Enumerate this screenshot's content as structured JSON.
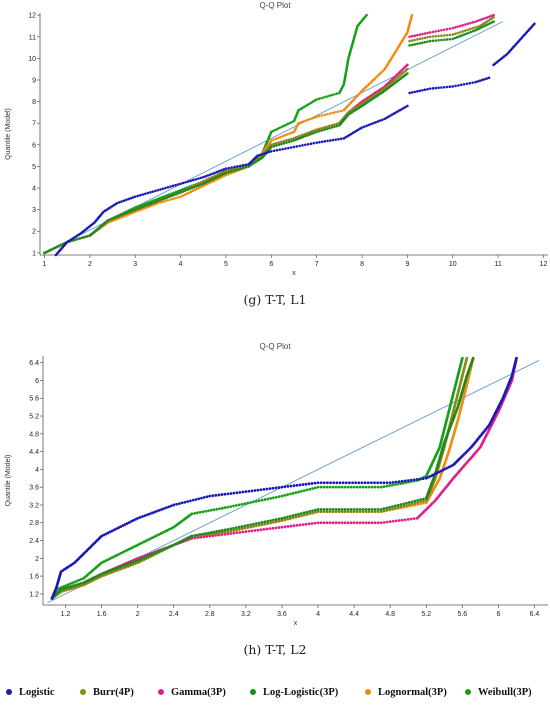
{
  "colors": {
    "logistic": "#1a1ab8",
    "burr": "#8a8a1a",
    "gamma": "#e0208a",
    "loglogistic": "#1e8a1e",
    "lognormal": "#f28c10",
    "weibull": "#16a016",
    "reference_line": "#5b9bd5",
    "axis": "#555555"
  },
  "captions": {
    "g": "(g) T-T, L1",
    "h": "(h) T-T, L2"
  },
  "legend": [
    {
      "label": "Logistic",
      "color": "#1a1ab8"
    },
    {
      "label": "Burr(4P)",
      "color": "#8a8a1a"
    },
    {
      "label": "Gamma(3P)",
      "color": "#e0208a"
    },
    {
      "label": "Log-Logistic(3P)",
      "color": "#1e8a1e"
    },
    {
      "label": "Lognormal(3P)",
      "color": "#f28c10"
    },
    {
      "label": "Weibull(3P)",
      "color": "#16a016"
    }
  ],
  "chart_data": [
    {
      "type": "scatter",
      "title": "Q-Q Plot",
      "xlabel": "x",
      "ylabel": "Quantile (Model)",
      "xlim": [
        0.9,
        12.1
      ],
      "ylim": [
        0.9,
        12.1
      ],
      "xticks": [
        1,
        2,
        3,
        4,
        5,
        6,
        7,
        8,
        9,
        10,
        11,
        12
      ],
      "yticks": [
        1,
        2,
        3,
        4,
        5,
        6,
        7,
        8,
        9,
        10,
        11,
        12
      ],
      "reference_line": [
        [
          1,
          1
        ],
        [
          11.1,
          11.7
        ]
      ],
      "series": [
        {
          "name": "Logistic",
          "points": [
            [
              1.25,
              0.9
            ],
            [
              1.5,
              1.5
            ],
            [
              1.8,
              1.9
            ],
            [
              2.1,
              2.4
            ],
            [
              2.3,
              2.9
            ],
            [
              2.6,
              3.3
            ],
            [
              3,
              3.6
            ],
            [
              3.5,
              3.9
            ],
            [
              4,
              4.2
            ],
            [
              4.5,
              4.5
            ],
            [
              5,
              4.9
            ],
            [
              5.5,
              5.1
            ],
            [
              5.7,
              5.5
            ],
            [
              6,
              5.7
            ],
            [
              6.5,
              5.9
            ],
            [
              7,
              6.1
            ],
            [
              7.6,
              6.3
            ],
            [
              8,
              6.8
            ],
            [
              8.5,
              7.2
            ],
            [
              9,
              7.8
            ]
          ],
          "points2": [
            [
              9.05,
              8.4
            ],
            [
              9.5,
              8.6
            ],
            [
              10,
              8.7
            ],
            [
              10.5,
              8.9
            ],
            [
              10.8,
              9.1
            ]
          ],
          "points3": [
            [
              10.9,
              9.7
            ],
            [
              11.2,
              10.2
            ],
            [
              11.5,
              10.9
            ],
            [
              11.8,
              11.6
            ]
          ]
        },
        {
          "name": "Burr(4P)",
          "points": [
            [
              1,
              1
            ],
            [
              1.5,
              1.5
            ],
            [
              2,
              1.8
            ],
            [
              2.4,
              2.5
            ],
            [
              3,
              3
            ],
            [
              3.5,
              3.4
            ],
            [
              4,
              3.8
            ],
            [
              4.5,
              4.3
            ],
            [
              5,
              4.8
            ],
            [
              5.5,
              5.1
            ],
            [
              5.8,
              5.5
            ],
            [
              6,
              6
            ],
            [
              6.5,
              6.3
            ],
            [
              7,
              6.7
            ],
            [
              7.5,
              7
            ],
            [
              7.7,
              7.5
            ],
            [
              8,
              7.9
            ],
            [
              8.5,
              8.6
            ],
            [
              9,
              9.5
            ]
          ],
          "points2": [
            [
              9.05,
              10.8
            ],
            [
              9.5,
              11
            ],
            [
              10,
              11.1
            ],
            [
              10.6,
              11.5
            ],
            [
              10.9,
              11.9
            ]
          ]
        },
        {
          "name": "Gamma(3P)",
          "points": [
            [
              1,
              1
            ],
            [
              1.5,
              1.5
            ],
            [
              2,
              1.8
            ],
            [
              2.4,
              2.5
            ],
            [
              3,
              3
            ],
            [
              3.5,
              3.4
            ],
            [
              4,
              3.8
            ],
            [
              4.5,
              4.3
            ],
            [
              5,
              4.8
            ],
            [
              5.5,
              5.1
            ],
            [
              5.8,
              5.5
            ],
            [
              6,
              6
            ],
            [
              6.5,
              6.3
            ],
            [
              7,
              6.7
            ],
            [
              7.5,
              7
            ],
            [
              7.7,
              7.5
            ],
            [
              8,
              8
            ],
            [
              8.5,
              8.7
            ],
            [
              9,
              9.7
            ]
          ],
          "points2": [
            [
              9.05,
              11
            ],
            [
              9.5,
              11.2
            ],
            [
              10,
              11.4
            ],
            [
              10.5,
              11.7
            ],
            [
              10.9,
              12
            ]
          ]
        },
        {
          "name": "Log-Logistic(3P)",
          "points": [
            [
              1,
              1
            ],
            [
              1.5,
              1.5
            ],
            [
              2,
              1.8
            ],
            [
              2.4,
              2.5
            ],
            [
              3,
              3
            ],
            [
              3.5,
              3.4
            ],
            [
              4,
              3.8
            ],
            [
              4.5,
              4.2
            ],
            [
              5,
              4.7
            ],
            [
              5.5,
              5
            ],
            [
              5.8,
              5.4
            ],
            [
              6,
              5.9
            ],
            [
              6.5,
              6.2
            ],
            [
              7,
              6.6
            ],
            [
              7.5,
              6.9
            ],
            [
              7.7,
              7.4
            ],
            [
              8,
              7.8
            ],
            [
              8.5,
              8.5
            ],
            [
              9,
              9.3
            ]
          ],
          "points2": [
            [
              9.05,
              10.6
            ],
            [
              9.5,
              10.8
            ],
            [
              10,
              10.9
            ],
            [
              10.5,
              11.3
            ],
            [
              10.9,
              11.7
            ]
          ]
        },
        {
          "name": "Lognormal(3P)",
          "points": [
            [
              1,
              1
            ],
            [
              1.5,
              1.5
            ],
            [
              2,
              1.8
            ],
            [
              2.4,
              2.4
            ],
            [
              3,
              2.9
            ],
            [
              3.5,
              3.3
            ],
            [
              4,
              3.6
            ],
            [
              4.5,
              4.1
            ],
            [
              5,
              4.6
            ],
            [
              5.5,
              5
            ],
            [
              5.8,
              5.6
            ],
            [
              6,
              6.2
            ],
            [
              6.5,
              6.6
            ],
            [
              6.6,
              7
            ],
            [
              7,
              7.3
            ],
            [
              7.6,
              7.6
            ],
            [
              8,
              8.5
            ],
            [
              8.5,
              9.5
            ],
            [
              9,
              11.2
            ],
            [
              9.1,
              12
            ]
          ]
        },
        {
          "name": "Weibull(3P)",
          "points": [
            [
              1,
              1
            ],
            [
              1.5,
              1.5
            ],
            [
              2,
              1.8
            ],
            [
              2.4,
              2.5
            ],
            [
              3,
              3.1
            ],
            [
              3.5,
              3.5
            ],
            [
              4,
              3.9
            ],
            [
              4.5,
              4.3
            ],
            [
              5,
              4.7
            ],
            [
              5.5,
              5
            ],
            [
              5.8,
              5.6
            ],
            [
              6,
              6.6
            ],
            [
              6.5,
              7.1
            ],
            [
              6.6,
              7.6
            ],
            [
              7,
              8.1
            ],
            [
              7.5,
              8.4
            ],
            [
              7.6,
              8.8
            ],
            [
              7.7,
              10
            ],
            [
              7.9,
              11.5
            ],
            [
              8.1,
              12
            ]
          ]
        }
      ]
    },
    {
      "type": "scatter",
      "title": "Q-Q Plot",
      "xlabel": "x",
      "ylabel": "Quantile (Model)",
      "xlim": [
        0.95,
        6.55
      ],
      "ylim": [
        0.95,
        6.55
      ],
      "xticks": [
        1.2,
        1.6,
        2,
        2.4,
        2.8,
        3.2,
        3.6,
        4,
        4.4,
        4.8,
        5.2,
        5.6,
        6,
        6.4
      ],
      "yticks": [
        1.2,
        1.6,
        2,
        2.4,
        2.8,
        3.2,
        3.6,
        4,
        4.4,
        4.8,
        5.2,
        5.6,
        6,
        6.4
      ],
      "reference_line": [
        [
          1,
          1
        ],
        [
          6.45,
          6.45
        ]
      ],
      "series": [
        {
          "name": "Logistic",
          "points": [
            [
              1.05,
              1.1
            ],
            [
              1.1,
              1.35
            ],
            [
              1.15,
              1.7
            ],
            [
              1.3,
              1.9
            ],
            [
              1.6,
              2.5
            ],
            [
              2,
              2.9
            ],
            [
              2.4,
              3.2
            ],
            [
              2.8,
              3.4
            ],
            [
              3.2,
              3.5
            ],
            [
              3.6,
              3.6
            ],
            [
              4,
              3.7
            ],
            [
              4.8,
              3.7
            ],
            [
              5.2,
              3.8
            ],
            [
              5.5,
              4.1
            ],
            [
              5.7,
              4.5
            ],
            [
              5.9,
              5
            ],
            [
              6.05,
              5.6
            ],
            [
              6.15,
              6.1
            ],
            [
              6.2,
              6.5
            ]
          ]
        },
        {
          "name": "Burr(4P)",
          "points": [
            [
              1.05,
              1.1
            ],
            [
              1.15,
              1.25
            ],
            [
              1.4,
              1.4
            ],
            [
              1.6,
              1.6
            ],
            [
              2,
              1.9
            ],
            [
              2.4,
              2.3
            ],
            [
              2.6,
              2.5
            ],
            [
              3,
              2.6
            ],
            [
              3.6,
              2.85
            ],
            [
              4,
              3.05
            ],
            [
              4.7,
              3.05
            ],
            [
              5.2,
              3.3
            ],
            [
              5.3,
              3.8
            ],
            [
              5.4,
              4.5
            ],
            [
              5.5,
              5.3
            ],
            [
              5.6,
              6.1
            ],
            [
              5.65,
              6.5
            ]
          ]
        },
        {
          "name": "Gamma(3P)",
          "points": [
            [
              1.05,
              1.1
            ],
            [
              1.15,
              1.3
            ],
            [
              1.4,
              1.45
            ],
            [
              1.6,
              1.65
            ],
            [
              2,
              2
            ],
            [
              2.4,
              2.3
            ],
            [
              2.6,
              2.45
            ],
            [
              3,
              2.55
            ],
            [
              3.6,
              2.7
            ],
            [
              4,
              2.8
            ],
            [
              4.7,
              2.8
            ],
            [
              5.1,
              2.9
            ],
            [
              5.3,
              3.3
            ],
            [
              5.5,
              3.8
            ],
            [
              5.8,
              4.5
            ],
            [
              6,
              5.3
            ],
            [
              6.15,
              6
            ],
            [
              6.2,
              6.5
            ]
          ]
        },
        {
          "name": "Log-Logistic(3P)",
          "points": [
            [
              1.05,
              1.1
            ],
            [
              1.15,
              1.3
            ],
            [
              1.4,
              1.45
            ],
            [
              1.6,
              1.65
            ],
            [
              2,
              1.95
            ],
            [
              2.4,
              2.3
            ],
            [
              2.6,
              2.5
            ],
            [
              3,
              2.65
            ],
            [
              3.6,
              2.9
            ],
            [
              4,
              3.1
            ],
            [
              4.7,
              3.1
            ],
            [
              5.2,
              3.35
            ],
            [
              5.3,
              3.9
            ],
            [
              5.4,
              4.6
            ],
            [
              5.55,
              5.4
            ],
            [
              5.65,
              6.1
            ],
            [
              5.72,
              6.5
            ]
          ]
        },
        {
          "name": "Lognormal(3P)",
          "points": [
            [
              1.05,
              1.1
            ],
            [
              1.15,
              1.25
            ],
            [
              1.4,
              1.4
            ],
            [
              1.6,
              1.6
            ],
            [
              2,
              1.9
            ],
            [
              2.4,
              2.3
            ],
            [
              2.6,
              2.45
            ],
            [
              3,
              2.6
            ],
            [
              3.6,
              2.85
            ],
            [
              4,
              3.05
            ],
            [
              4.7,
              3.05
            ],
            [
              5.2,
              3.25
            ],
            [
              5.35,
              3.8
            ],
            [
              5.45,
              4.4
            ],
            [
              5.55,
              5.1
            ],
            [
              5.65,
              5.9
            ],
            [
              5.72,
              6.5
            ]
          ]
        },
        {
          "name": "Weibull(3P)",
          "points": [
            [
              1.05,
              1.1
            ],
            [
              1.1,
              1.3
            ],
            [
              1.4,
              1.55
            ],
            [
              1.6,
              1.9
            ],
            [
              2,
              2.3
            ],
            [
              2.4,
              2.7
            ],
            [
              2.6,
              3
            ],
            [
              3,
              3.15
            ],
            [
              3.6,
              3.4
            ],
            [
              4,
              3.6
            ],
            [
              4.7,
              3.6
            ],
            [
              5.1,
              3.75
            ],
            [
              5.2,
              3.85
            ],
            [
              5.35,
              4.5
            ],
            [
              5.45,
              5.3
            ],
            [
              5.55,
              6.1
            ],
            [
              5.6,
              6.5
            ]
          ]
        }
      ]
    }
  ]
}
